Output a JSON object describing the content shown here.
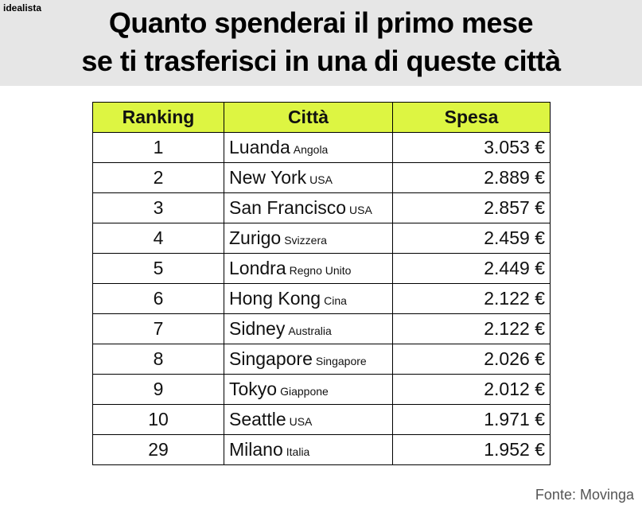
{
  "brand": "idealista",
  "title": [
    "Quanto spenderai il primo mese",
    "se ti trasferisci in una di queste città"
  ],
  "table": {
    "header": [
      "Ranking",
      "Città",
      "Spesa"
    ],
    "rows": [
      {
        "ranking": 1,
        "city": "Luanda",
        "country": "Angola",
        "spesa": "3.053 €"
      },
      {
        "ranking": 2,
        "city": "New York",
        "country": "USA",
        "spesa": "2.889 €"
      },
      {
        "ranking": 3,
        "city": "San Francisco",
        "country": "USA",
        "spesa": "2.857 €"
      },
      {
        "ranking": 4,
        "city": "Zurigo",
        "country": "Svizzera",
        "spesa": "2.459 €"
      },
      {
        "ranking": 5,
        "city": "Londra",
        "country": "Regno Unito",
        "spesa": "2.449 €"
      },
      {
        "ranking": 6,
        "city": "Hong Kong",
        "country": "Cina",
        "spesa": "2.122 €"
      },
      {
        "ranking": 7,
        "city": "Sidney",
        "country": "Australia",
        "spesa": "2.122 €"
      },
      {
        "ranking": 8,
        "city": "Singapore",
        "country": "Singapore",
        "spesa": "2.026 €"
      },
      {
        "ranking": 9,
        "city": "Tokyo",
        "country": "Giappone",
        "spesa": "2.012 €"
      },
      {
        "ranking": 10,
        "city": "Seattle",
        "country": "USA",
        "spesa": "1.971 €"
      },
      {
        "ranking": 29,
        "city": "Milano",
        "country": "Italia",
        "spesa": "1.952 €"
      }
    ]
  },
  "source": "Fonte: Movinga"
}
